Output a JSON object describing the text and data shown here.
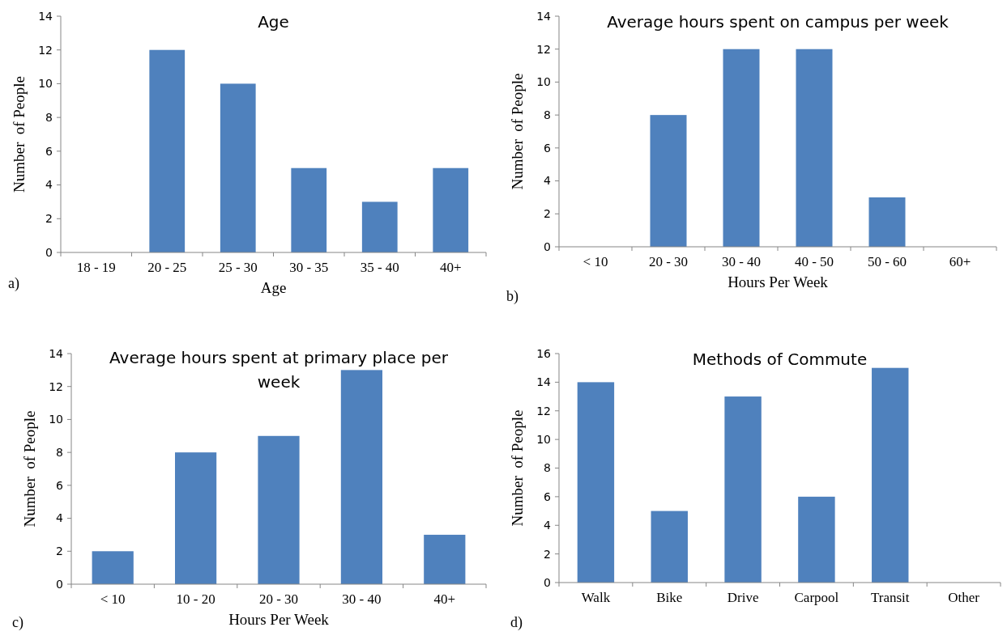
{
  "chart_data": [
    {
      "type": "bar",
      "title": "Age",
      "xlabel": "Age",
      "ylabel": "Number  of People",
      "categories": [
        "18 - 19",
        "20 - 25",
        "25 - 30",
        "30 - 35",
        "35 - 40",
        "40+"
      ],
      "values": [
        0,
        12,
        10,
        5,
        3,
        5
      ],
      "color": "#4f81bd",
      "ylim": [
        0,
        14
      ],
      "yticks": [
        0,
        2,
        4,
        6,
        8,
        10,
        12,
        14
      ],
      "grid": false,
      "annotations": [
        "a)"
      ]
    },
    {
      "type": "bar",
      "title": "Average hours spent on campus per week",
      "xlabel": "Hours Per Week",
      "ylabel": "Number  of People",
      "categories": [
        "< 10",
        "20 - 30",
        "30 - 40",
        "40 - 50",
        "50 - 60",
        "60+"
      ],
      "values": [
        0,
        8,
        12,
        12,
        3,
        0
      ],
      "color": "#4f81bd",
      "ylim": [
        0,
        14
      ],
      "yticks": [
        0,
        2,
        4,
        6,
        8,
        10,
        12,
        14
      ],
      "grid": false,
      "annotations": [
        "b)"
      ]
    },
    {
      "type": "bar",
      "title": "Average hours spent at primary place per week",
      "xlabel": "Hours Per Week",
      "ylabel": "Number  of People",
      "categories": [
        "< 10",
        "10 - 20",
        "20 - 30",
        "30 - 40",
        "40+"
      ],
      "values": [
        2,
        8,
        9,
        13,
        3
      ],
      "color": "#4f81bd",
      "ylim": [
        0,
        14
      ],
      "yticks": [
        0,
        2,
        4,
        6,
        8,
        10,
        12,
        14
      ],
      "grid": false,
      "annotations": [
        "c)"
      ]
    },
    {
      "type": "bar",
      "title": "Methods of Commute",
      "ylabel": "Number  of People",
      "categories": [
        "Walk",
        "Bike",
        "Drive",
        "Carpool",
        "Transit",
        "Other"
      ],
      "values": [
        14,
        5,
        13,
        6,
        15,
        0
      ],
      "color": "#4f81bd",
      "ylim": [
        0,
        16
      ],
      "yticks": [
        0,
        2,
        4,
        6,
        8,
        10,
        12,
        14,
        16
      ],
      "grid": false,
      "annotations": [
        "d)"
      ]
    }
  ]
}
